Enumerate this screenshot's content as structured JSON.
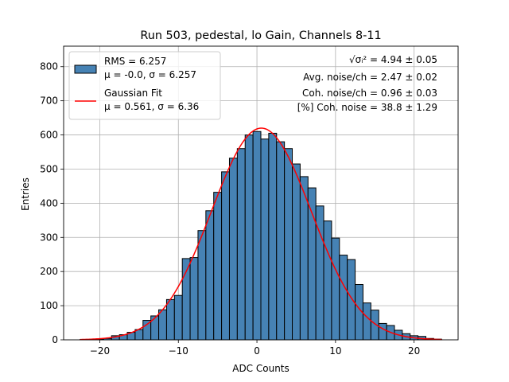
{
  "chart_data": {
    "type": "bar",
    "title": "Run 503, pedestal, lo Gain, Channels 8-11",
    "xlabel": "ADC Counts",
    "ylabel": "Entries",
    "xlim": [
      -24.6,
      25.6
    ],
    "ylim": [
      0,
      860
    ],
    "xticks": [
      -20,
      -10,
      0,
      10,
      20
    ],
    "yticks": [
      0,
      100,
      200,
      300,
      400,
      500,
      600,
      700,
      800
    ],
    "grid": true,
    "legend_position": "top-left",
    "bin_edges": [
      -22.5,
      -21.5,
      -20.5,
      -19.5,
      -18.5,
      -17.5,
      -16.5,
      -15.5,
      -14.5,
      -13.5,
      -12.5,
      -11.5,
      -10.5,
      -9.5,
      -8.5,
      -7.5,
      -6.5,
      -5.5,
      -4.5,
      -3.5,
      -2.5,
      -1.5,
      -0.5,
      0.5,
      1.5,
      2.5,
      3.5,
      4.5,
      5.5,
      6.5,
      7.5,
      8.5,
      9.5,
      10.5,
      11.5,
      12.5,
      13.5,
      14.5,
      15.5,
      16.5,
      17.5,
      18.5,
      19.5,
      20.5,
      21.5,
      22.5,
      23.5
    ],
    "series": [
      {
        "name": "RMS = 6.257",
        "name_line2": "μ = -0.0, σ = 6.257",
        "kind": "histogram",
        "color": "#4682b4",
        "edgecolor": "#000000",
        "values": [
          1,
          1,
          2,
          4,
          12,
          15,
          22,
          30,
          57,
          70,
          88,
          118,
          130,
          238,
          241,
          320,
          378,
          432,
          492,
          532,
          560,
          600,
          610,
          588,
          605,
          580,
          560,
          515,
          478,
          445,
          392,
          348,
          298,
          248,
          235,
          162,
          108,
          87,
          48,
          42,
          28,
          18,
          12,
          10,
          4,
          2
        ]
      },
      {
        "name": "Gaussian Fit",
        "name_line2": "μ = 0.561, σ = 6.36",
        "kind": "line",
        "color": "#ff0000",
        "x_range": [
          -22.5,
          23.5
        ],
        "mu": 0.561,
        "sigma": 6.36,
        "amplitude": 620
      }
    ],
    "annotations": [
      {
        "label": "√σᵢ²",
        "value": "= 4.94 ± 0.05"
      },
      {
        "label": "Avg. noise/ch",
        "value": "= 2.47 ± 0.02"
      },
      {
        "label": "Coh. noise/ch",
        "value": "= 0.96 ± 0.03"
      },
      {
        "label": "[%] Coh. noise",
        "value": "= 38.8 ± 1.29"
      }
    ]
  }
}
